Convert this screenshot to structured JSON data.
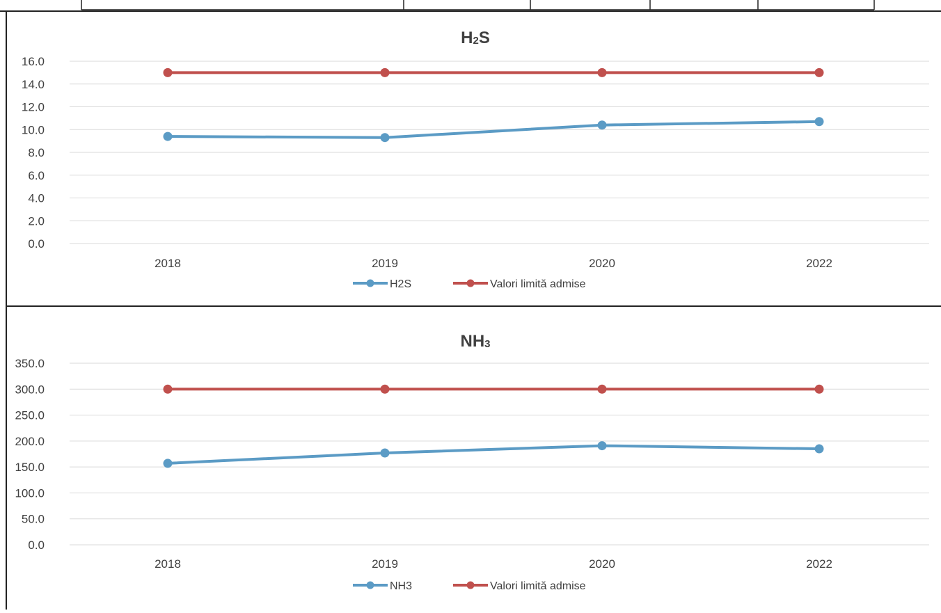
{
  "charts": [
    {
      "title_main": "H",
      "title_sub": "2",
      "title_tail": "S",
      "type": "line",
      "categories": [
        "2018",
        "2019",
        "2020",
        "2022"
      ],
      "ylim": [
        0,
        16
      ],
      "yticks": [
        "0.0",
        "2.0",
        "4.0",
        "6.0",
        "8.0",
        "10.0",
        "12.0",
        "14.0",
        "16.0"
      ],
      "series": [
        {
          "name": "H2S",
          "values": [
            9.4,
            9.3,
            10.4,
            10.7
          ],
          "color": "#5b9bc5"
        },
        {
          "name": "Valori limită admise",
          "values": [
            15.0,
            15.0,
            15.0,
            15.0
          ],
          "color": "#c0504d"
        }
      ]
    },
    {
      "title_main": "NH",
      "title_sub": "3",
      "title_tail": "",
      "type": "line",
      "categories": [
        "2018",
        "2019",
        "2020",
        "2022"
      ],
      "ylim": [
        0,
        350
      ],
      "yticks": [
        "0.0",
        "50.0",
        "100.0",
        "150.0",
        "200.0",
        "250.0",
        "300.0",
        "350.0"
      ],
      "series": [
        {
          "name": "NH3",
          "values": [
            157,
            177,
            191,
            185
          ],
          "color": "#5b9bc5"
        },
        {
          "name": "Valori limită admise",
          "values": [
            300,
            300,
            300,
            300
          ],
          "color": "#c0504d"
        }
      ]
    }
  ],
  "chart_data": [
    {
      "type": "line",
      "title": "H2S",
      "categories": [
        "2018",
        "2019",
        "2020",
        "2022"
      ],
      "ylim": [
        0,
        16
      ],
      "grid": true,
      "legend": "bottom",
      "series": [
        {
          "name": "H2S",
          "values": [
            9.4,
            9.3,
            10.4,
            10.7
          ]
        },
        {
          "name": "Valori limită admise",
          "values": [
            15.0,
            15.0,
            15.0,
            15.0
          ]
        }
      ]
    },
    {
      "type": "line",
      "title": "NH3",
      "categories": [
        "2018",
        "2019",
        "2020",
        "2022"
      ],
      "ylim": [
        0,
        350
      ],
      "grid": true,
      "legend": "bottom",
      "series": [
        {
          "name": "NH3",
          "values": [
            157,
            177,
            191,
            185
          ]
        },
        {
          "name": "Valori limită admise",
          "values": [
            300,
            300,
            300,
            300
          ]
        }
      ]
    }
  ]
}
